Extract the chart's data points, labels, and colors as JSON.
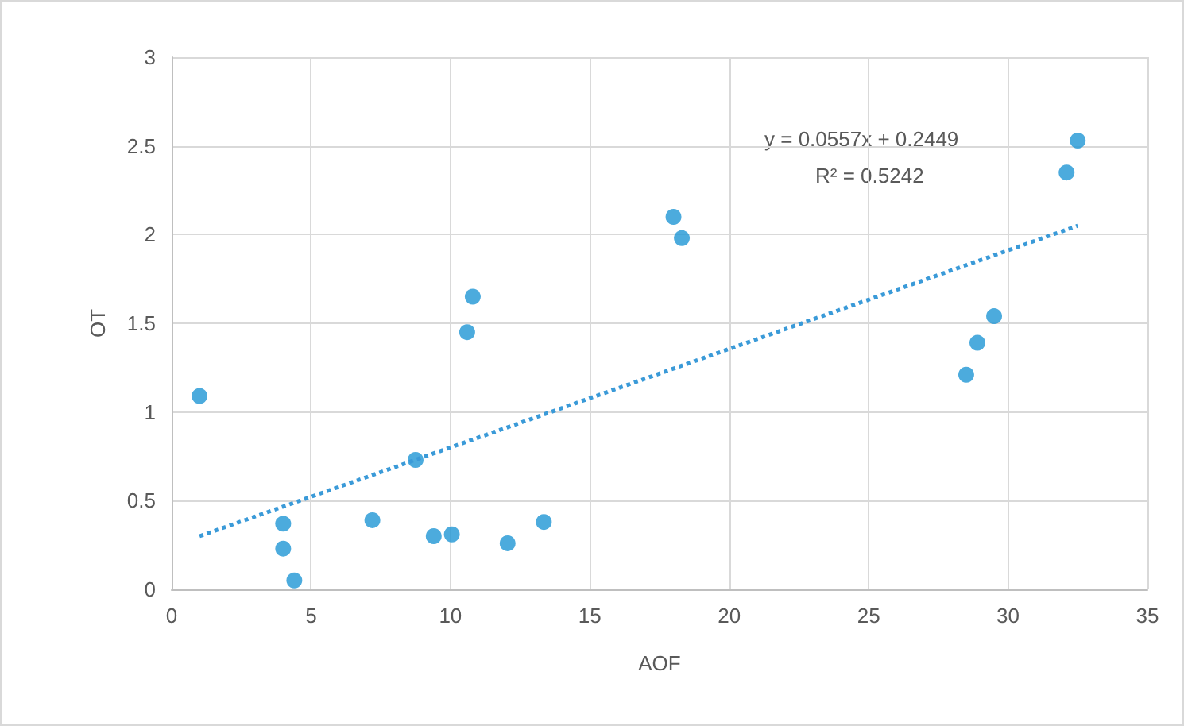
{
  "chart_data": {
    "type": "scatter",
    "xlabel": "AOF",
    "ylabel": "OT",
    "xlim": [
      0,
      35
    ],
    "xticks": [
      0,
      5,
      10,
      15,
      20,
      25,
      30,
      35
    ],
    "ylim": [
      0,
      3
    ],
    "yticks": [
      0,
      0.5,
      1,
      1.5,
      2,
      2.5,
      3
    ],
    "grid": true,
    "marker": "circle",
    "annotations": [
      "y = 0.0557x + 0.2449",
      "R² = 0.5242"
    ],
    "series": [
      {
        "color": "#1f96d4",
        "x": [
          1.0,
          4.0,
          4.0,
          4.4,
          7.2,
          8.75,
          9.4,
          10.05,
          10.6,
          10.8,
          12.05,
          13.35,
          18.0,
          18.3,
          28.5,
          28.9,
          29.5,
          32.1,
          32.5
        ],
        "values": [
          1.09,
          0.37,
          0.23,
          0.05,
          0.39,
          0.73,
          0.3,
          0.31,
          1.45,
          1.65,
          0.26,
          0.38,
          2.1,
          1.98,
          1.21,
          1.39,
          1.54,
          2.35,
          2.53
        ]
      },
      {
        "type": "line",
        "color": "#3a9ad8",
        "line_style": "dotted",
        "marker": "none",
        "x": [
          1.0,
          32.5
        ],
        "values": [
          0.3,
          2.05
        ]
      }
    ]
  }
}
